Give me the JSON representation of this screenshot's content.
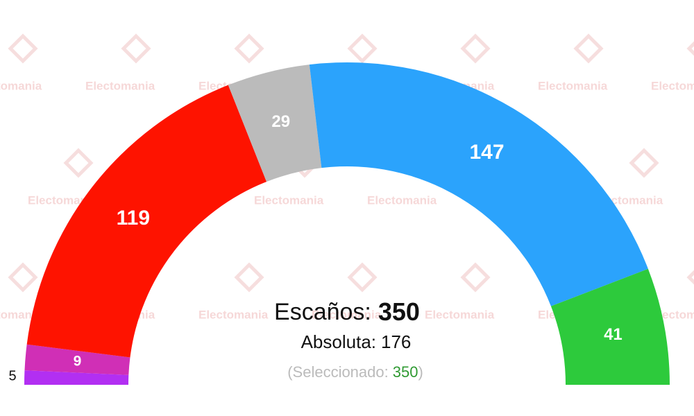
{
  "chart_data": {
    "type": "hemicycle",
    "values": [
      5,
      9,
      119,
      29,
      147,
      41
    ],
    "colors": [
      "#b22ff2",
      "#d02fb6",
      "#fe1300",
      "#bbbbbb",
      "#2ba3fc",
      "#2dca3c"
    ],
    "total_label": "Escaños:",
    "total": 350,
    "majority_label": "Absoluta:",
    "majority": 176,
    "selected_open": "(",
    "selected_label": "Seleccionado:",
    "selected": 350,
    "selected_close": ")",
    "selected_color": "#2f9a32",
    "watermark": "Electomania"
  }
}
